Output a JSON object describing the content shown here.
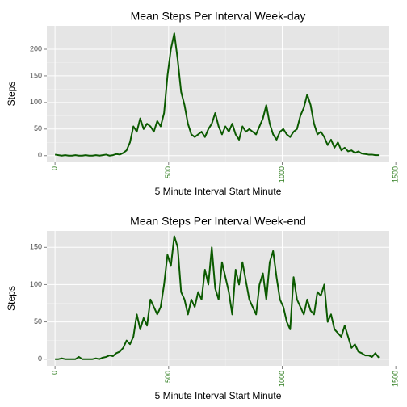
{
  "chart_data": [
    {
      "type": "line",
      "title": "Mean Steps Per Interval Week-day",
      "x_label": "5 Minute Interval Start Minute",
      "y_label": "Steps",
      "color": "#0b5a00",
      "tick_label_color": "#2e7d1e",
      "x": [
        0,
        15,
        30,
        45,
        60,
        75,
        90,
        105,
        120,
        135,
        150,
        165,
        180,
        195,
        210,
        225,
        240,
        255,
        270,
        285,
        300,
        315,
        330,
        345,
        360,
        375,
        390,
        405,
        420,
        435,
        450,
        465,
        480,
        495,
        510,
        525,
        540,
        555,
        570,
        585,
        600,
        615,
        630,
        645,
        660,
        675,
        690,
        705,
        720,
        735,
        750,
        765,
        780,
        795,
        810,
        825,
        840,
        855,
        870,
        885,
        900,
        915,
        930,
        945,
        960,
        975,
        990,
        1005,
        1020,
        1035,
        1050,
        1065,
        1080,
        1095,
        1110,
        1125,
        1140,
        1155,
        1170,
        1185,
        1200,
        1215,
        1230,
        1245,
        1260,
        1275,
        1290,
        1305,
        1320,
        1335,
        1350,
        1365,
        1380,
        1395,
        1410,
        1425
      ],
      "values": [
        2,
        1,
        0,
        1,
        0,
        0,
        1,
        0,
        0,
        1,
        0,
        0,
        1,
        0,
        1,
        2,
        0,
        1,
        3,
        2,
        5,
        10,
        25,
        55,
        45,
        70,
        50,
        60,
        55,
        45,
        65,
        55,
        80,
        150,
        200,
        230,
        180,
        120,
        95,
        60,
        40,
        35,
        40,
        45,
        35,
        50,
        60,
        80,
        55,
        40,
        55,
        45,
        60,
        40,
        30,
        55,
        45,
        50,
        45,
        40,
        55,
        70,
        95,
        60,
        40,
        30,
        45,
        50,
        40,
        35,
        45,
        50,
        75,
        90,
        115,
        95,
        60,
        40,
        45,
        35,
        20,
        30,
        15,
        25,
        10,
        15,
        8,
        10,
        5,
        8,
        4,
        3,
        2,
        2,
        1,
        1
      ],
      "xlim": [
        -36,
        1471
      ],
      "xticks": [
        0,
        500,
        1000,
        1500
      ],
      "ylim": [
        -11,
        244
      ],
      "yticks": [
        0,
        50,
        100,
        150,
        200
      ],
      "grid": true
    },
    {
      "type": "line",
      "title": "Mean Steps Per Interval Week-end",
      "x_label": "5 Minute Interval Start Minute",
      "y_label": "Steps",
      "color": "#0b5a00",
      "tick_label_color": "#2e7d1e",
      "x": [
        0,
        15,
        30,
        45,
        60,
        75,
        90,
        105,
        120,
        135,
        150,
        165,
        180,
        195,
        210,
        225,
        240,
        255,
        270,
        285,
        300,
        315,
        330,
        345,
        360,
        375,
        390,
        405,
        420,
        435,
        450,
        465,
        480,
        495,
        510,
        525,
        540,
        555,
        570,
        585,
        600,
        615,
        630,
        645,
        660,
        675,
        690,
        705,
        720,
        735,
        750,
        765,
        780,
        795,
        810,
        825,
        840,
        855,
        870,
        885,
        900,
        915,
        930,
        945,
        960,
        975,
        990,
        1005,
        1020,
        1035,
        1050,
        1065,
        1080,
        1095,
        1110,
        1125,
        1140,
        1155,
        1170,
        1185,
        1200,
        1215,
        1230,
        1245,
        1260,
        1275,
        1290,
        1305,
        1320,
        1335,
        1350,
        1365,
        1380,
        1395,
        1410,
        1425
      ],
      "values": [
        0,
        0,
        1,
        0,
        0,
        0,
        0,
        3,
        0,
        0,
        0,
        0,
        1,
        0,
        2,
        3,
        5,
        4,
        8,
        10,
        15,
        25,
        20,
        30,
        60,
        40,
        55,
        45,
        80,
        70,
        60,
        70,
        100,
        140,
        125,
        165,
        150,
        90,
        80,
        60,
        80,
        70,
        90,
        80,
        120,
        100,
        150,
        95,
        80,
        130,
        110,
        90,
        60,
        120,
        100,
        130,
        105,
        80,
        70,
        60,
        100,
        115,
        80,
        130,
        145,
        110,
        80,
        70,
        50,
        40,
        110,
        80,
        70,
        60,
        80,
        65,
        60,
        90,
        85,
        100,
        50,
        60,
        40,
        35,
        30,
        45,
        30,
        15,
        20,
        10,
        8,
        5,
        5,
        3,
        8,
        2
      ],
      "xlim": [
        -36,
        1471
      ],
      "xticks": [
        0,
        500,
        1000,
        1500
      ],
      "ylim": [
        -9,
        172
      ],
      "yticks": [
        0,
        50,
        100,
        150
      ],
      "grid": true
    }
  ]
}
